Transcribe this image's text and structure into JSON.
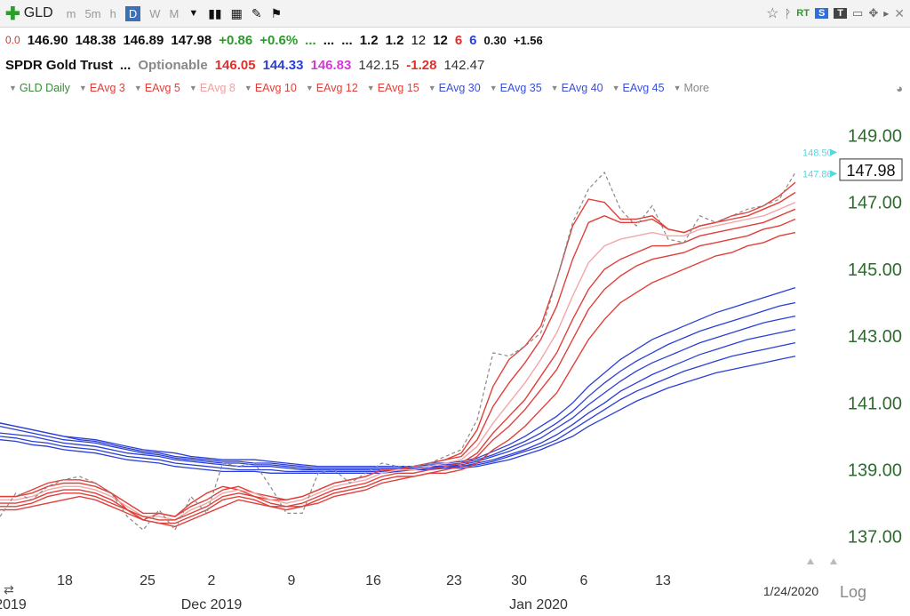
{
  "toolbar": {
    "symbol": "GLD",
    "timeframes": [
      "m",
      "5m",
      "h",
      "D",
      "W",
      "M"
    ],
    "active_timeframe": "D",
    "right_labels": [
      "RT",
      "S",
      "T"
    ]
  },
  "quote_line1": {
    "first": "0.0",
    "open": "146.90",
    "high": "148.38",
    "low": "146.89",
    "close": "147.98",
    "change": "+0.86",
    "change_pct": "+0.6%",
    "dots1": "...",
    "dots2": "...",
    "dots3": "...",
    "v1": "1.2",
    "v2": "1.2",
    "v3": "12",
    "v4": "12",
    "v5": "6",
    "v6": "6",
    "v7": "0.30",
    "v8": "+1.56"
  },
  "quote_line2": {
    "name": "SPDR Gold Trust",
    "dots": "...",
    "optionable": "Optionable",
    "p1": "146.05",
    "p2": "144.33",
    "p3": "146.83",
    "p4": "142.15",
    "p5": "-1.28",
    "p6": "142.47"
  },
  "legend": {
    "items": [
      {
        "label": "GLD Daily",
        "color": "#3a8a3a"
      },
      {
        "label": "EAvg 3",
        "color": "#e0403a"
      },
      {
        "label": "EAvg 5",
        "color": "#e0403a"
      },
      {
        "label": "EAvg 8",
        "color": "#f0a0a0"
      },
      {
        "label": "EAvg 10",
        "color": "#e0403a"
      },
      {
        "label": "EAvg 12",
        "color": "#e0403a"
      },
      {
        "label": "EAvg 15",
        "color": "#e0403a"
      },
      {
        "label": "EAvg 30",
        "color": "#3a4fd8"
      },
      {
        "label": "EAvg 35",
        "color": "#3a4fd8"
      },
      {
        "label": "EAvg 40",
        "color": "#3a4fd8"
      },
      {
        "label": "EAvg 45",
        "color": "#3a4fd8"
      }
    ],
    "more": "More"
  },
  "chart_data": {
    "type": "line",
    "x_tick_labels": [
      "18",
      "25",
      "2",
      "9",
      "16",
      "23",
      "30",
      "6",
      "13"
    ],
    "x_month_labels": [
      "2019",
      "Dec 2019",
      "Jan 2020"
    ],
    "date_label": "1/24/2020",
    "scale_label": "Log",
    "y_ticks": [
      "149.00",
      "147.00",
      "145.00",
      "143.00",
      "141.00",
      "139.00",
      "137.00"
    ],
    "ylim": [
      136.3,
      149.6
    ],
    "price_box": "147.98",
    "marker_labels": [
      "148.50",
      "147.86"
    ],
    "colors": {
      "fast": "#e0403a",
      "ema8": "#f3a7a7",
      "slow": "#2b3fd6",
      "price": "#8a8a8a",
      "axis_text": "#2e6b2e"
    },
    "price_series": [
      137.6,
      138.3,
      138.1,
      138.5,
      138.7,
      138.8,
      138.6,
      138.3,
      137.6,
      137.2,
      137.8,
      137.2,
      138.2,
      137.7,
      139.2,
      139.1,
      139.2,
      138.5,
      137.7,
      137.7,
      138.9,
      139.0,
      138.6,
      138.9,
      139.2,
      139.1,
      139.1,
      139.2,
      139.4,
      139.6,
      140.5,
      142.5,
      142.4,
      142.7,
      143.1,
      144.7,
      146.4,
      147.4,
      147.9,
      146.8,
      146.3,
      146.9,
      145.9,
      145.8,
      146.6,
      146.4,
      146.6,
      146.8,
      146.9,
      147.1,
      147.9
    ],
    "fast_series": [
      {
        "name": "EAvg 3",
        "values": [
          138.2,
          138.2,
          138.4,
          138.6,
          138.7,
          138.7,
          138.6,
          138.3,
          137.8,
          137.5,
          137.7,
          137.6,
          138.0,
          138.3,
          138.5,
          138.4,
          138.2,
          138.1,
          138.1,
          138.2,
          138.4,
          138.6,
          138.7,
          138.8,
          139.0,
          139.0,
          139.1,
          139.2,
          139.3,
          139.5,
          140.2,
          141.5,
          142.3,
          142.7,
          143.3,
          144.7,
          146.3,
          147.1,
          147.0,
          146.5,
          146.5,
          146.6,
          146.2,
          146.1,
          146.3,
          146.4,
          146.6,
          146.7,
          146.9,
          147.2,
          147.6
        ]
      },
      {
        "name": "EAvg 5",
        "values": [
          138.2,
          138.2,
          138.3,
          138.5,
          138.6,
          138.6,
          138.5,
          138.3,
          138.0,
          137.7,
          137.7,
          137.6,
          137.9,
          138.1,
          138.4,
          138.5,
          138.3,
          138.2,
          138.1,
          138.2,
          138.4,
          138.6,
          138.7,
          138.8,
          139.0,
          139.0,
          139.1,
          139.2,
          139.3,
          139.4,
          139.9,
          140.9,
          141.6,
          142.2,
          142.9,
          143.9,
          145.3,
          146.4,
          146.6,
          146.4,
          146.4,
          146.5,
          146.2,
          146.1,
          146.3,
          146.4,
          146.5,
          146.6,
          146.8,
          147.0,
          147.3
        ]
      },
      {
        "name": "EAvg 8",
        "values": [
          138.1,
          138.1,
          138.2,
          138.4,
          138.5,
          138.5,
          138.4,
          138.2,
          137.9,
          137.6,
          137.6,
          137.5,
          137.8,
          138.0,
          138.3,
          138.4,
          138.3,
          138.1,
          138.0,
          138.1,
          138.3,
          138.5,
          138.6,
          138.7,
          138.9,
          139.0,
          139.0,
          139.1,
          139.2,
          139.3,
          139.7,
          140.4,
          141.0,
          141.6,
          142.3,
          143.1,
          144.2,
          145.2,
          145.7,
          145.9,
          146.0,
          146.1,
          146.0,
          146.0,
          146.2,
          146.3,
          146.4,
          146.5,
          146.6,
          146.8,
          147.0
        ]
      },
      {
        "name": "EAvg 10",
        "values": [
          138.0,
          138.0,
          138.1,
          138.3,
          138.4,
          138.4,
          138.3,
          138.1,
          137.8,
          137.6,
          137.5,
          137.5,
          137.7,
          137.9,
          138.2,
          138.3,
          138.2,
          138.0,
          137.9,
          138.0,
          138.2,
          138.4,
          138.5,
          138.6,
          138.8,
          138.9,
          138.9,
          139.0,
          139.1,
          139.2,
          139.5,
          140.1,
          140.6,
          141.1,
          141.8,
          142.5,
          143.5,
          144.4,
          145.0,
          145.3,
          145.5,
          145.7,
          145.7,
          145.8,
          146.0,
          146.1,
          146.2,
          146.3,
          146.4,
          146.6,
          146.8
        ]
      },
      {
        "name": "EAvg 12",
        "values": [
          137.9,
          137.9,
          138.0,
          138.2,
          138.3,
          138.3,
          138.2,
          138.0,
          137.8,
          137.5,
          137.4,
          137.4,
          137.6,
          137.8,
          138.1,
          138.2,
          138.1,
          137.9,
          137.9,
          137.9,
          138.1,
          138.3,
          138.4,
          138.5,
          138.7,
          138.8,
          138.8,
          138.9,
          139.0,
          139.1,
          139.4,
          139.9,
          140.3,
          140.8,
          141.4,
          142.0,
          142.9,
          143.8,
          144.4,
          144.8,
          145.1,
          145.3,
          145.4,
          145.5,
          145.7,
          145.8,
          145.9,
          146.0,
          146.2,
          146.3,
          146.5
        ]
      },
      {
        "name": "EAvg 15",
        "values": [
          137.8,
          137.8,
          137.9,
          138.0,
          138.1,
          138.2,
          138.1,
          137.9,
          137.7,
          137.5,
          137.4,
          137.3,
          137.5,
          137.7,
          137.9,
          138.1,
          138.0,
          137.9,
          137.8,
          137.9,
          138.0,
          138.2,
          138.3,
          138.4,
          138.6,
          138.7,
          138.8,
          138.9,
          138.9,
          139.0,
          139.2,
          139.6,
          139.9,
          140.3,
          140.8,
          141.3,
          142.1,
          142.9,
          143.5,
          144.0,
          144.3,
          144.6,
          144.8,
          145.0,
          145.2,
          145.4,
          145.5,
          145.7,
          145.8,
          146.0,
          146.1
        ]
      }
    ],
    "slow_series": [
      {
        "name": "EAvg 30",
        "values": [
          140.4,
          140.3,
          140.2,
          140.1,
          140.0,
          139.95,
          139.9,
          139.8,
          139.7,
          139.6,
          139.55,
          139.5,
          139.4,
          139.35,
          139.3,
          139.3,
          139.3,
          139.25,
          139.2,
          139.15,
          139.1,
          139.1,
          139.1,
          139.1,
          139.1,
          139.1,
          139.1,
          139.2,
          139.2,
          139.25,
          139.35,
          139.55,
          139.75,
          140.0,
          140.3,
          140.6,
          141.0,
          141.5,
          141.9,
          142.3,
          142.6,
          142.9,
          143.1,
          143.3,
          143.5,
          143.7,
          143.85,
          144.0,
          144.15,
          144.3,
          144.45
        ]
      },
      {
        "name": "EAvg 35",
        "values": [
          140.4,
          140.3,
          140.2,
          140.1,
          140.0,
          139.9,
          139.85,
          139.75,
          139.65,
          139.55,
          139.5,
          139.4,
          139.35,
          139.3,
          139.25,
          139.25,
          139.2,
          139.2,
          139.15,
          139.1,
          139.05,
          139.05,
          139.05,
          139.05,
          139.05,
          139.05,
          139.1,
          139.15,
          139.15,
          139.2,
          139.3,
          139.45,
          139.65,
          139.85,
          140.1,
          140.4,
          140.75,
          141.2,
          141.6,
          141.95,
          142.25,
          142.5,
          142.75,
          142.95,
          143.15,
          143.3,
          143.45,
          143.6,
          143.75,
          143.9,
          144.0
        ]
      },
      {
        "name": "EAvg 40",
        "values": [
          140.3,
          140.2,
          140.1,
          140.0,
          139.9,
          139.85,
          139.8,
          139.7,
          139.6,
          139.5,
          139.45,
          139.35,
          139.3,
          139.25,
          139.2,
          139.2,
          139.15,
          139.15,
          139.1,
          139.05,
          139.0,
          139.0,
          139.0,
          139.0,
          139.0,
          139.0,
          139.05,
          139.1,
          139.1,
          139.15,
          139.25,
          139.4,
          139.55,
          139.75,
          139.95,
          140.25,
          140.55,
          140.95,
          141.3,
          141.65,
          141.95,
          142.2,
          142.4,
          142.6,
          142.8,
          142.95,
          143.1,
          143.25,
          143.4,
          143.5,
          143.6
        ]
      },
      {
        "name": "EAvg 45",
        "values": [
          140.1,
          140.05,
          140.0,
          139.9,
          139.8,
          139.75,
          139.7,
          139.6,
          139.5,
          139.45,
          139.4,
          139.3,
          139.25,
          139.2,
          139.15,
          139.1,
          139.1,
          139.1,
          139.05,
          139.0,
          139.0,
          139.0,
          139.0,
          139.0,
          139.0,
          139.0,
          139.05,
          139.05,
          139.1,
          139.1,
          139.2,
          139.3,
          139.45,
          139.6,
          139.8,
          140.05,
          140.35,
          140.7,
          141.0,
          141.35,
          141.6,
          141.85,
          142.05,
          142.25,
          142.45,
          142.6,
          142.75,
          142.9,
          143.0,
          143.1,
          143.2
        ]
      },
      {
        "name": "slow-5",
        "values": [
          140.0,
          139.95,
          139.85,
          139.8,
          139.7,
          139.65,
          139.6,
          139.5,
          139.4,
          139.35,
          139.3,
          139.2,
          139.15,
          139.1,
          139.05,
          139.0,
          139.0,
          139.0,
          138.95,
          138.95,
          138.95,
          138.95,
          138.95,
          138.95,
          138.95,
          139.0,
          139.0,
          139.05,
          139.05,
          139.1,
          139.15,
          139.25,
          139.4,
          139.55,
          139.7,
          139.9,
          140.2,
          140.5,
          140.8,
          141.1,
          141.35,
          141.55,
          141.75,
          141.95,
          142.1,
          142.25,
          142.4,
          142.5,
          142.6,
          142.7,
          142.8
        ]
      },
      {
        "name": "slow-6",
        "values": [
          139.9,
          139.85,
          139.75,
          139.7,
          139.6,
          139.55,
          139.5,
          139.4,
          139.3,
          139.25,
          139.2,
          139.1,
          139.05,
          139.0,
          138.95,
          138.95,
          138.95,
          138.9,
          138.9,
          138.9,
          138.9,
          138.9,
          138.9,
          138.9,
          138.9,
          138.95,
          139.0,
          139.0,
          139.05,
          139.05,
          139.1,
          139.2,
          139.3,
          139.45,
          139.6,
          139.8,
          140.0,
          140.3,
          140.55,
          140.8,
          141.05,
          141.25,
          141.45,
          141.6,
          141.75,
          141.9,
          142.0,
          142.1,
          142.2,
          142.3,
          142.4
        ]
      }
    ]
  }
}
